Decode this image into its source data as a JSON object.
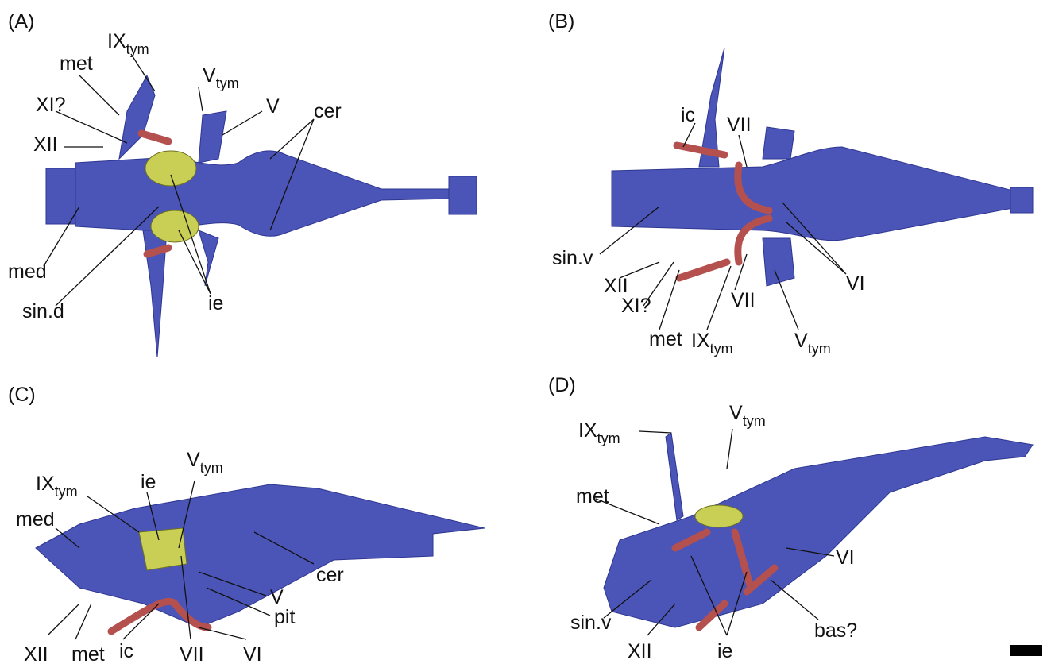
{
  "panels": [
    {
      "letter": "(A)",
      "labels": [
        {
          "text": "IX",
          "sub": "tym"
        },
        {
          "text": "met"
        },
        {
          "text": "V",
          "sub": "tym"
        },
        {
          "text": "XI?"
        },
        {
          "text": "V"
        },
        {
          "text": "cer"
        },
        {
          "text": "XII"
        },
        {
          "text": "med"
        },
        {
          "text": "sin.d"
        },
        {
          "text": "ie"
        }
      ]
    },
    {
      "letter": "(B)",
      "labels": [
        {
          "text": "ic"
        },
        {
          "text": "VII"
        },
        {
          "text": "sin.v"
        },
        {
          "text": "VI"
        },
        {
          "text": "XII"
        },
        {
          "text": "XI?"
        },
        {
          "text": "VII"
        },
        {
          "text": "met"
        },
        {
          "text": "IX",
          "sub": "tym"
        },
        {
          "text": "V",
          "sub": "tym"
        }
      ]
    },
    {
      "letter": "(C)",
      "labels": [
        {
          "text": "IX",
          "sub": "tym"
        },
        {
          "text": "ie"
        },
        {
          "text": "V",
          "sub": "tym"
        },
        {
          "text": "med"
        },
        {
          "text": "cer"
        },
        {
          "text": "V"
        },
        {
          "text": "pit"
        },
        {
          "text": "XII"
        },
        {
          "text": "met"
        },
        {
          "text": "ic"
        },
        {
          "text": "VII"
        },
        {
          "text": "VI"
        }
      ]
    },
    {
      "letter": "(D)",
      "labels": [
        {
          "text": "IX",
          "sub": "tym"
        },
        {
          "text": "V",
          "sub": "tym"
        },
        {
          "text": "met"
        },
        {
          "text": "VI"
        },
        {
          "text": "sin.v"
        },
        {
          "text": "XII"
        },
        {
          "text": "ie"
        },
        {
          "text": "bas?"
        }
      ]
    }
  ]
}
